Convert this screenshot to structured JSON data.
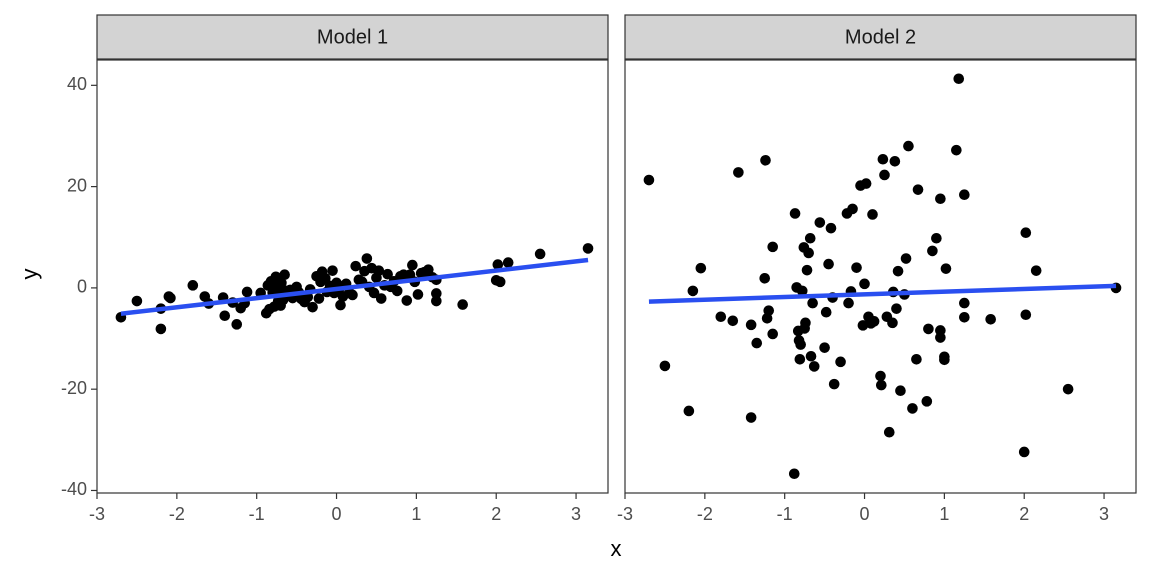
{
  "chart_data": {
    "type": "scatter",
    "xlabel": "x",
    "ylabel": "y",
    "xlim": [
      -3,
      3.4
    ],
    "ylim": [
      -40.5,
      45
    ],
    "x_ticks": [
      -3,
      -2,
      -1,
      0,
      1,
      2,
      3
    ],
    "y_ticks": [
      -40,
      -20,
      0,
      20,
      40
    ],
    "grid": false,
    "point_color": "#000000",
    "line_color": "#2a4ff0",
    "strip_fill": "#d3d3d3",
    "panels": [
      {
        "label": "Model 1",
        "fit": {
          "x": [
            -2.7,
            3.15
          ],
          "y": [
            -5.1,
            5.5
          ]
        },
        "points": [
          [
            -2.7,
            -5.8
          ],
          [
            -2.5,
            -2.6
          ],
          [
            -2.2,
            -4.1
          ],
          [
            -2.2,
            -8.1
          ],
          [
            -2.1,
            -1.7
          ],
          [
            -2.08,
            -2.0
          ],
          [
            -1.8,
            0.5
          ],
          [
            -1.65,
            -1.7
          ],
          [
            -1.6,
            -3.1
          ],
          [
            -1.42,
            -1.9
          ],
          [
            -1.4,
            -5.5
          ],
          [
            -1.3,
            -2.9
          ],
          [
            -1.25,
            -7.2
          ],
          [
            -1.2,
            -4.0
          ],
          [
            -1.15,
            -3.0
          ],
          [
            -1.12,
            -0.8
          ],
          [
            -0.95,
            -1.0
          ],
          [
            -0.88,
            -5.0
          ],
          [
            -0.86,
            0.5
          ],
          [
            -0.84,
            -4.2
          ],
          [
            -0.82,
            1.3
          ],
          [
            -0.8,
            -0.9
          ],
          [
            -0.78,
            -3.7
          ],
          [
            -0.76,
            2.2
          ],
          [
            -0.75,
            0.5
          ],
          [
            -0.73,
            -2.6
          ],
          [
            -0.72,
            -0.2
          ],
          [
            -0.7,
            -3.5
          ],
          [
            -0.69,
            1.0
          ],
          [
            -0.67,
            -2.4
          ],
          [
            -0.65,
            2.6
          ],
          [
            -0.63,
            -0.6
          ],
          [
            -0.61,
            -1.3
          ],
          [
            -0.58,
            -0.4
          ],
          [
            -0.55,
            -2.0
          ],
          [
            -0.52,
            -1.5
          ],
          [
            -0.5,
            0.2
          ],
          [
            -0.47,
            -0.9
          ],
          [
            -0.44,
            -2.2
          ],
          [
            -0.4,
            -2.8
          ],
          [
            -0.36,
            -1.8
          ],
          [
            -0.33,
            -0.3
          ],
          [
            -0.3,
            -3.8
          ],
          [
            -0.25,
            2.3
          ],
          [
            -0.22,
            -2.1
          ],
          [
            -0.2,
            1.2
          ],
          [
            -0.18,
            3.2
          ],
          [
            -0.14,
            1.9
          ],
          [
            -0.12,
            -0.8
          ],
          [
            -0.08,
            0.4
          ],
          [
            -0.05,
            3.4
          ],
          [
            -0.03,
            -1.0
          ],
          [
            0.0,
            1.0
          ],
          [
            0.03,
            -0.3
          ],
          [
            0.05,
            -3.4
          ],
          [
            0.08,
            -1.7
          ],
          [
            0.12,
            0.8
          ],
          [
            0.16,
            -0.9
          ],
          [
            0.2,
            -1.4
          ],
          [
            0.24,
            4.3
          ],
          [
            0.28,
            1.6
          ],
          [
            0.32,
            1.2
          ],
          [
            0.35,
            3.3
          ],
          [
            0.38,
            5.8
          ],
          [
            0.41,
            0.2
          ],
          [
            0.44,
            3.9
          ],
          [
            0.47,
            -1.0
          ],
          [
            0.5,
            2.0
          ],
          [
            0.53,
            3.4
          ],
          [
            0.56,
            -2.1
          ],
          [
            0.6,
            0.5
          ],
          [
            0.64,
            2.7
          ],
          [
            0.68,
            0.2
          ],
          [
            0.72,
            1.3
          ],
          [
            0.76,
            -0.6
          ],
          [
            0.8,
            2.3
          ],
          [
            0.84,
            2.6
          ],
          [
            0.88,
            -2.5
          ],
          [
            0.92,
            2.6
          ],
          [
            0.95,
            4.5
          ],
          [
            0.98,
            1.2
          ],
          [
            1.02,
            -1.3
          ],
          [
            1.06,
            2.9
          ],
          [
            1.1,
            3.1
          ],
          [
            1.15,
            3.6
          ],
          [
            1.2,
            2.1
          ],
          [
            1.25,
            1.6
          ],
          [
            1.25,
            -2.6
          ],
          [
            1.25,
            -1.1
          ],
          [
            1.58,
            -3.3
          ],
          [
            2.0,
            1.5
          ],
          [
            2.02,
            4.6
          ],
          [
            2.05,
            1.2
          ],
          [
            2.15,
            5.0
          ],
          [
            2.55,
            6.7
          ],
          [
            3.15,
            7.8
          ]
        ]
      },
      {
        "label": "Model 2",
        "fit": {
          "x": [
            -2.7,
            3.15
          ],
          "y": [
            -2.7,
            0.4
          ]
        },
        "points": [
          [
            -2.7,
            21.3
          ],
          [
            -2.5,
            -15.4
          ],
          [
            -2.2,
            -24.3
          ],
          [
            -2.15,
            -0.6
          ],
          [
            -2.05,
            3.9
          ],
          [
            -1.8,
            -5.7
          ],
          [
            -1.65,
            -6.5
          ],
          [
            -1.58,
            22.8
          ],
          [
            -1.42,
            -25.6
          ],
          [
            -1.42,
            -7.3
          ],
          [
            -1.35,
            -10.9
          ],
          [
            -1.25,
            1.9
          ],
          [
            -1.24,
            25.2
          ],
          [
            -1.22,
            -6.0
          ],
          [
            -1.2,
            -4.5
          ],
          [
            -1.15,
            8.1
          ],
          [
            -1.15,
            -9.1
          ],
          [
            -0.88,
            -36.7
          ],
          [
            -0.87,
            14.7
          ],
          [
            -0.85,
            0.1
          ],
          [
            -0.83,
            -8.5
          ],
          [
            -0.82,
            -10.4
          ],
          [
            -0.81,
            -14.1
          ],
          [
            -0.8,
            -11.2
          ],
          [
            -0.78,
            -0.6
          ],
          [
            -0.76,
            8.0
          ],
          [
            -0.75,
            -8.0
          ],
          [
            -0.74,
            -6.9
          ],
          [
            -0.72,
            3.5
          ],
          [
            -0.7,
            6.9
          ],
          [
            -0.68,
            9.8
          ],
          [
            -0.67,
            -13.5
          ],
          [
            -0.65,
            -3.0
          ],
          [
            -0.63,
            -15.5
          ],
          [
            -0.56,
            12.9
          ],
          [
            -0.5,
            -11.8
          ],
          [
            -0.48,
            -4.8
          ],
          [
            -0.45,
            4.7
          ],
          [
            -0.42,
            11.8
          ],
          [
            -0.4,
            -1.9
          ],
          [
            -0.38,
            -19.0
          ],
          [
            -0.3,
            -14.6
          ],
          [
            -0.22,
            14.7
          ],
          [
            -0.2,
            -3.0
          ],
          [
            -0.17,
            -0.7
          ],
          [
            -0.15,
            15.6
          ],
          [
            -0.1,
            4.0
          ],
          [
            -0.05,
            20.2
          ],
          [
            -0.02,
            -7.4
          ],
          [
            0.0,
            0.8
          ],
          [
            0.02,
            20.6
          ],
          [
            0.05,
            -5.7
          ],
          [
            0.08,
            -7.0
          ],
          [
            0.1,
            14.5
          ],
          [
            0.12,
            -6.6
          ],
          [
            0.2,
            -17.4
          ],
          [
            0.21,
            -19.2
          ],
          [
            0.23,
            25.4
          ],
          [
            0.25,
            22.3
          ],
          [
            0.28,
            -5.7
          ],
          [
            0.31,
            -28.5
          ],
          [
            0.35,
            -6.9
          ],
          [
            0.36,
            -0.8
          ],
          [
            0.38,
            25.0
          ],
          [
            0.4,
            -4.1
          ],
          [
            0.42,
            3.3
          ],
          [
            0.45,
            -20.3
          ],
          [
            0.5,
            -1.3
          ],
          [
            0.52,
            5.8
          ],
          [
            0.55,
            28.0
          ],
          [
            0.6,
            -23.8
          ],
          [
            0.65,
            -14.1
          ],
          [
            0.67,
            19.4
          ],
          [
            0.78,
            -22.4
          ],
          [
            0.8,
            -8.1
          ],
          [
            0.85,
            7.3
          ],
          [
            0.9,
            9.8
          ],
          [
            0.95,
            -8.4
          ],
          [
            0.95,
            -9.8
          ],
          [
            0.95,
            17.6
          ],
          [
            1.0,
            -13.6
          ],
          [
            1.0,
            -14.2
          ],
          [
            1.02,
            3.8
          ],
          [
            1.15,
            27.2
          ],
          [
            1.18,
            41.3
          ],
          [
            1.25,
            18.4
          ],
          [
            1.25,
            -3.0
          ],
          [
            1.25,
            -5.8
          ],
          [
            1.58,
            -6.2
          ],
          [
            2.0,
            -32.4
          ],
          [
            2.02,
            10.9
          ],
          [
            2.02,
            -5.3
          ],
          [
            2.15,
            3.4
          ],
          [
            2.55,
            -20.0
          ],
          [
            3.15,
            0.0
          ]
        ]
      }
    ]
  }
}
